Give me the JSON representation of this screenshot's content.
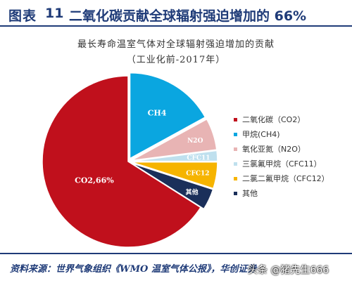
{
  "header": {
    "label": "图表",
    "number": "11",
    "title": "二氧化碳贡献全球辐射强迫增加的 66%"
  },
  "chart_data": {
    "type": "pie",
    "title": "最长寿命温室气体对全球辐射强迫增加的贡献",
    "subtitle": "（工业化前-2017年）",
    "slices": [
      {
        "legend": "二氧化碳（CO2）",
        "data_label": "CO2,66%",
        "value": 66,
        "color": "#c0101c"
      },
      {
        "legend": "甲烷(CH4)",
        "data_label": "CH4",
        "value": 17,
        "color": "#0aa6e0"
      },
      {
        "legend": "氧化亚氮（N2O）",
        "data_label": "N2O",
        "value": 6,
        "color": "#e8b4b4"
      },
      {
        "legend": "三氯氟甲烷（CFC11）",
        "data_label": "CFC11",
        "value": 2,
        "color": "#bfe0ee"
      },
      {
        "legend": "二氯二氟甲烷（CFC12）",
        "data_label": "CFC12",
        "value": 5,
        "color": "#f6b400"
      },
      {
        "legend": "其他",
        "data_label": "其他",
        "value": 4,
        "color": "#1a2f5a"
      }
    ],
    "legend_position": "right"
  },
  "footer": {
    "source": "资料来源：世界气象组织《WMO 温室气体公报》，华创证券",
    "watermark": "头条 @猪先生666"
  }
}
